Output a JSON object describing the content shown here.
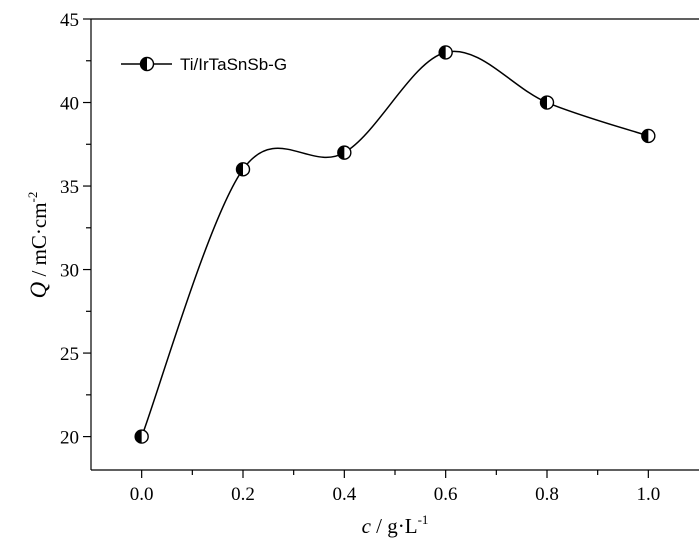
{
  "chart_data": {
    "type": "line",
    "x": [
      0.0,
      0.2,
      0.4,
      0.6,
      0.8,
      1.0
    ],
    "series": [
      {
        "name": "Ti/IrTaSnSb-G",
        "values": [
          20,
          36,
          37,
          43,
          40,
          38
        ]
      }
    ],
    "xlim": [
      -0.1,
      1.1
    ],
    "ylim": [
      18,
      45
    ],
    "xticks": [
      "0.0",
      "0.2",
      "0.4",
      "0.6",
      "0.8",
      "1.0"
    ],
    "yticks": [
      "20",
      "25",
      "30",
      "35",
      "40",
      "45"
    ],
    "xlabel": {
      "sym": "c",
      "unit": " / g·L",
      "sup": "-1"
    },
    "ylabel": {
      "sym": "Q",
      "unit": " / mC·cm",
      "sup": "-2"
    },
    "legend_position": "top-left",
    "marker": "half-filled circle",
    "grid": false,
    "smooth": true
  }
}
